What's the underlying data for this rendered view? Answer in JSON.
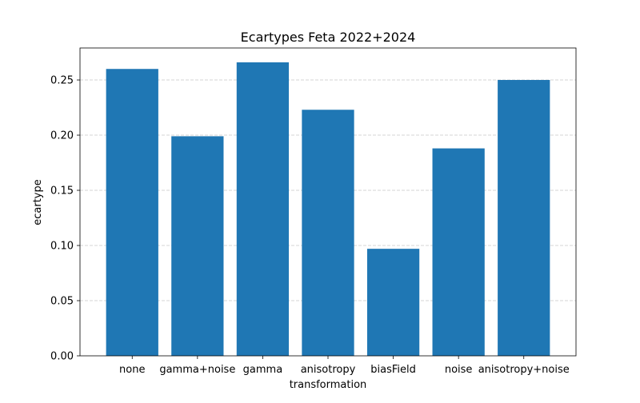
{
  "chart_data": {
    "type": "bar",
    "title": "Ecartypes Feta 2022+2024",
    "xlabel": "transformation",
    "ylabel": "ecartype",
    "categories": [
      "none",
      "gamma+noise",
      "gamma",
      "anisotropy",
      "biasField",
      "noise",
      "anisotropy+noise"
    ],
    "values": [
      0.26,
      0.199,
      0.266,
      0.223,
      0.097,
      0.188,
      0.25
    ],
    "ylim": [
      0,
      0.279
    ],
    "yticks": [
      0.0,
      0.05,
      0.1,
      0.15,
      0.2,
      0.25
    ],
    "ytick_labels": [
      "0.00",
      "0.05",
      "0.10",
      "0.15",
      "0.20",
      "0.25"
    ],
    "grid": "y-dashed",
    "bar_color": "#1f77b4",
    "grid_color": "#c8c8c8"
  }
}
